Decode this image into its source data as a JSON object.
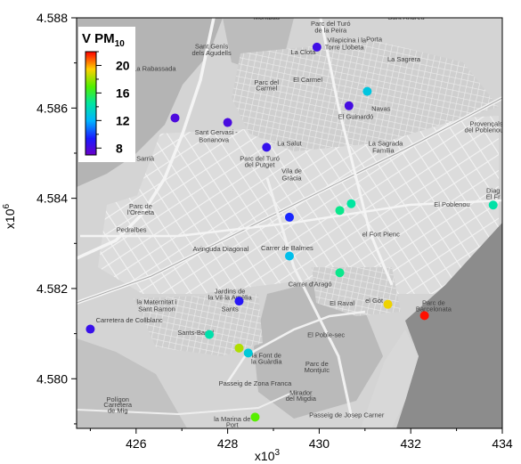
{
  "chart_data": {
    "type": "scatter",
    "title": "",
    "xlabel": "x10",
    "xlabel_exp": "3",
    "ylabel": "x10",
    "ylabel_exp": "6",
    "xlim": [
      424.7,
      434.0
    ],
    "ylim": [
      4.5789,
      4.588
    ],
    "x_ticks": [
      426,
      428,
      430,
      432,
      434
    ],
    "x_tick_labels": [
      "426",
      "428",
      "430",
      "432",
      "434"
    ],
    "y_ticks": [
      4.58,
      4.582,
      4.584,
      4.586,
      4.588
    ],
    "y_tick_labels": [
      "4.580",
      "4.582",
      "4.584",
      "4.586",
      "4.588"
    ],
    "background": "grayscale street map of Barcelona",
    "map_labels": [
      {
        "text": "Montbau",
        "x": 428.85,
        "y": 4.58796
      },
      {
        "text": "Parc del Turó",
        "x": 430.25,
        "y": 4.58782
      },
      {
        "text": "de la Peira",
        "x": 430.25,
        "y": 4.58767
      },
      {
        "text": "Sant Andreu",
        "x": 431.9,
        "y": 4.58796
      },
      {
        "text": "Porta",
        "x": 431.2,
        "y": 4.58748
      },
      {
        "text": "Vilapicina i la",
        "x": 430.6,
        "y": 4.58746
      },
      {
        "text": "Torre Llobeta",
        "x": 430.55,
        "y": 4.5873
      },
      {
        "text": "La Clota",
        "x": 429.65,
        "y": 4.58719
      },
      {
        "text": "Sant Genís",
        "x": 427.65,
        "y": 4.58732
      },
      {
        "text": "dels Agudells",
        "x": 427.65,
        "y": 4.58717
      },
      {
        "text": "La Sagrera",
        "x": 431.85,
        "y": 4.58703
      },
      {
        "text": "La Rabassada",
        "x": 426.4,
        "y": 4.58683
      },
      {
        "text": "El Carmel",
        "x": 429.75,
        "y": 4.58658
      },
      {
        "text": "Parc del",
        "x": 428.85,
        "y": 4.58652
      },
      {
        "text": "Carmel",
        "x": 428.85,
        "y": 4.58639
      },
      {
        "text": "El Guinardó",
        "x": 430.8,
        "y": 4.58576
      },
      {
        "text": "Navas",
        "x": 431.35,
        "y": 4.58594
      },
      {
        "text": "Provençals",
        "x": 433.65,
        "y": 4.5856
      },
      {
        "text": "del Poblenou",
        "x": 433.6,
        "y": 4.58546
      },
      {
        "text": "Sant Gervasi -",
        "x": 427.75,
        "y": 4.58541
      },
      {
        "text": "Bonanova",
        "x": 427.7,
        "y": 4.58525
      },
      {
        "text": "La Salut",
        "x": 429.35,
        "y": 4.58517
      },
      {
        "text": "La Sagrada",
        "x": 431.45,
        "y": 4.58517
      },
      {
        "text": "Família",
        "x": 431.4,
        "y": 4.58501
      },
      {
        "text": "Sarrià",
        "x": 426.2,
        "y": 4.58483
      },
      {
        "text": "Parc del Turó",
        "x": 428.7,
        "y": 4.58483
      },
      {
        "text": "del Putget",
        "x": 428.7,
        "y": 4.58469
      },
      {
        "text": "Vila de",
        "x": 429.4,
        "y": 4.58456
      },
      {
        "text": "Gràcia",
        "x": 429.4,
        "y": 4.5844
      },
      {
        "text": "Diag",
        "x": 433.8,
        "y": 4.58412
      },
      {
        "text": "El Fr",
        "x": 433.8,
        "y": 4.58398
      },
      {
        "text": "El Poblenou",
        "x": 432.9,
        "y": 4.58382
      },
      {
        "text": "Parc de",
        "x": 426.1,
        "y": 4.58378
      },
      {
        "text": "l'Oreneta",
        "x": 426.1,
        "y": 4.58364
      },
      {
        "text": "Pedralbes",
        "x": 425.9,
        "y": 4.58325
      },
      {
        "text": "el Fort Pienc",
        "x": 431.35,
        "y": 4.58315
      },
      {
        "text": "Jardins de",
        "x": 428.05,
        "y": 4.58189
      },
      {
        "text": "la Vil·la Amèlia",
        "x": 428.05,
        "y": 4.58175
      },
      {
        "text": "la Maternitat i",
        "x": 426.45,
        "y": 4.58165
      },
      {
        "text": "Sant Ramon",
        "x": 426.45,
        "y": 4.5815
      },
      {
        "text": "Sants",
        "x": 428.05,
        "y": 4.5815
      },
      {
        "text": "El Raval",
        "x": 430.5,
        "y": 4.58162
      },
      {
        "text": "el Gòt",
        "x": 431.2,
        "y": 4.58168
      },
      {
        "text": "Parc de",
        "x": 432.5,
        "y": 4.58163
      },
      {
        "text": "Barcelonata",
        "x": 432.5,
        "y": 4.5815
      },
      {
        "text": "Sants-Badal",
        "x": 427.3,
        "y": 4.58097
      },
      {
        "text": "El Poble-sec",
        "x": 430.15,
        "y": 4.58092
      },
      {
        "text": "la Font de",
        "x": 428.85,
        "y": 4.58047
      },
      {
        "text": "la Guàrdia",
        "x": 428.85,
        "y": 4.58033
      },
      {
        "text": "Parc de",
        "x": 429.95,
        "y": 4.58028
      },
      {
        "text": "Montjuïc",
        "x": 429.95,
        "y": 4.58014
      },
      {
        "text": "Mirador",
        "x": 429.6,
        "y": 4.57964
      },
      {
        "text": "del Migdia",
        "x": 429.6,
        "y": 4.57951
      },
      {
        "text": "la Marina de",
        "x": 428.1,
        "y": 4.57906
      },
      {
        "text": "Port",
        "x": 428.1,
        "y": 4.57893
      },
      {
        "text": "Polígon",
        "x": 425.6,
        "y": 4.57949
      },
      {
        "text": "Carretera",
        "x": 425.6,
        "y": 4.57937
      },
      {
        "text": "de Mig",
        "x": 425.6,
        "y": 4.57925
      },
      {
        "text": "Carretera de Collblanc",
        "x": 425.85,
        "y": 4.58125
      },
      {
        "text": "Avinguda Diagonal",
        "x": 427.85,
        "y": 4.58283
      },
      {
        "text": "Carrer de Balmes",
        "x": 429.3,
        "y": 4.58285
      },
      {
        "text": "Carrer d'Aragó",
        "x": 429.8,
        "y": 4.58205
      },
      {
        "text": "Passeig de Zona Franca",
        "x": 428.6,
        "y": 4.57985
      },
      {
        "text": "Passeig de Josep Carner",
        "x": 430.6,
        "y": 4.57915
      }
    ],
    "colorbar": {
      "label": "V PM",
      "label_sub": "10",
      "min": 7,
      "max": 22,
      "ticks": [
        8,
        12,
        16,
        20
      ],
      "tick_labels": [
        "8",
        "12",
        "16",
        "20"
      ]
    },
    "points": [
      {
        "x": 429.95,
        "y": 4.58735,
        "value": 8.3
      },
      {
        "x": 430.65,
        "y": 4.58605,
        "value": 8.1
      },
      {
        "x": 426.85,
        "y": 4.58578,
        "value": 7.9
      },
      {
        "x": 428.0,
        "y": 4.58568,
        "value": 8.0
      },
      {
        "x": 428.85,
        "y": 4.58513,
        "value": 8.6
      },
      {
        "x": 431.05,
        "y": 4.58637,
        "value": 12.8
      },
      {
        "x": 429.35,
        "y": 4.58358,
        "value": 9.6
      },
      {
        "x": 430.7,
        "y": 4.58388,
        "value": 14.5
      },
      {
        "x": 430.45,
        "y": 4.58373,
        "value": 14.8
      },
      {
        "x": 433.8,
        "y": 4.58385,
        "value": 14.3
      },
      {
        "x": 429.35,
        "y": 4.58272,
        "value": 12.5
      },
      {
        "x": 430.45,
        "y": 4.58235,
        "value": 14.8
      },
      {
        "x": 428.25,
        "y": 4.58172,
        "value": 9.0
      },
      {
        "x": 431.5,
        "y": 4.58165,
        "value": 19.2
      },
      {
        "x": 432.3,
        "y": 4.5814,
        "value": 21.8
      },
      {
        "x": 425.0,
        "y": 4.5811,
        "value": 8.5
      },
      {
        "x": 427.6,
        "y": 4.58098,
        "value": 14.2
      },
      {
        "x": 428.25,
        "y": 4.58068,
        "value": 18.3
      },
      {
        "x": 428.45,
        "y": 4.58057,
        "value": 13.0
      },
      {
        "x": 428.6,
        "y": 4.57915,
        "value": 17.0
      }
    ]
  }
}
